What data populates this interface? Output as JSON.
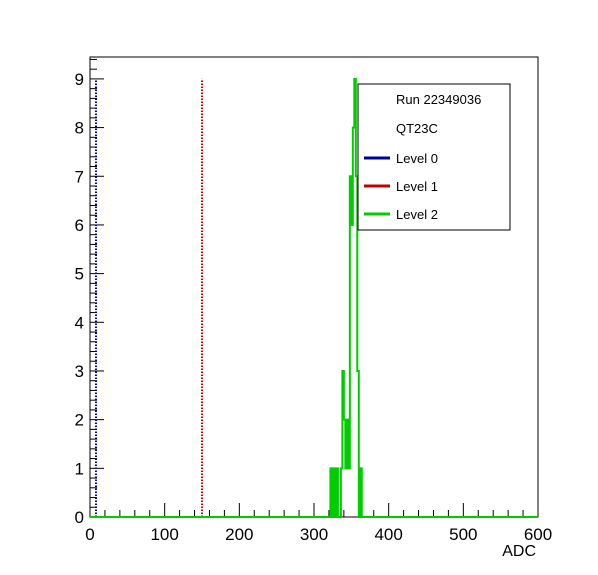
{
  "chart_data": {
    "type": "histogram",
    "title": "",
    "xlabel": "ADC",
    "ylabel": "",
    "xlim": [
      0,
      600
    ],
    "ylim": [
      0,
      9.45
    ],
    "x_ticks": [
      0,
      100,
      200,
      300,
      400,
      500,
      600
    ],
    "y_ticks": [
      0,
      1,
      2,
      3,
      4,
      5,
      6,
      7,
      8,
      9
    ],
    "grid": false,
    "legend": {
      "placement": "top-right",
      "header": [
        "Run 22349036",
        "QT23C"
      ],
      "entries": [
        {
          "label": "Level 0",
          "color": "#0000a0"
        },
        {
          "label": "Level 1",
          "color": "#c00000"
        },
        {
          "label": "Level 2",
          "color": "#00cc00"
        }
      ]
    },
    "series": [
      {
        "name": "Level 0",
        "style": "vertical-dotted-line",
        "x": 8,
        "ymax": 9,
        "color": "#0000a0"
      },
      {
        "name": "Level 1",
        "style": "vertical-dotted-line",
        "x": 150,
        "ymax": 9,
        "color": "#c00000"
      },
      {
        "name": "Level 2",
        "style": "step",
        "color": "#00cc00",
        "bins": [
          [
            322,
            1
          ],
          [
            324,
            0
          ],
          [
            326,
            1
          ],
          [
            328,
            0
          ],
          [
            330,
            1
          ],
          [
            332,
            0
          ],
          [
            336,
            1
          ],
          [
            338,
            3
          ],
          [
            340,
            2
          ],
          [
            342,
            1
          ],
          [
            344,
            2
          ],
          [
            346,
            1
          ],
          [
            348,
            7
          ],
          [
            350,
            6
          ],
          [
            352,
            8
          ],
          [
            354,
            9
          ],
          [
            356,
            7
          ],
          [
            358,
            3
          ],
          [
            360,
            0
          ],
          [
            362,
            1
          ],
          [
            364,
            0
          ]
        ]
      }
    ]
  }
}
